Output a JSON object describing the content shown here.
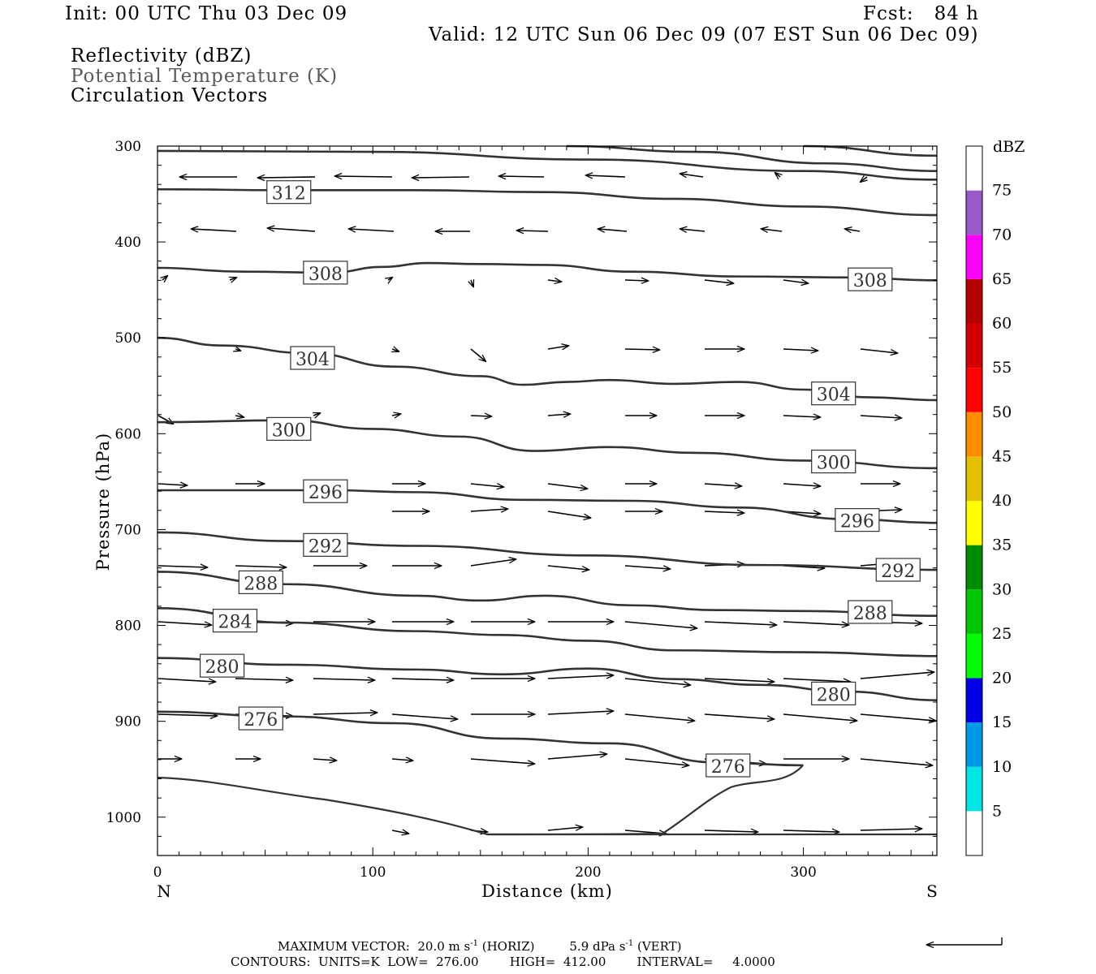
{
  "header": {
    "init": "Init: 00 UTC Thu 03 Dec 09",
    "fcst": "Fcst:   84 h",
    "valid": "Valid: 12 UTC Sun 06 Dec 09 (07 EST Sun 06 Dec 09)",
    "field1": "Reflectivity (dBZ)",
    "field2": "Potential Temperature (K)",
    "field3": "Circulation Vectors"
  },
  "chart_data": {
    "type": "cross-section",
    "xlabel": "Distance (km)",
    "ylabel": "Pressure (hPa)",
    "xlim": [
      0,
      362
    ],
    "ylim_pressure": [
      300,
      1040
    ],
    "x_ticks": [
      0,
      100,
      200,
      300
    ],
    "y_ticks": [
      300,
      400,
      500,
      600,
      700,
      800,
      900,
      1000
    ],
    "x_end_labels": {
      "left": "N",
      "right": "S"
    },
    "colorbar": {
      "title": "dBZ",
      "levels": [
        "5",
        "10",
        "15",
        "20",
        "25",
        "30",
        "35",
        "40",
        "45",
        "50",
        "55",
        "60",
        "65",
        "70",
        "75"
      ],
      "colors": [
        "#00e5e5",
        "#0099e6",
        "#0000e6",
        "#00ff00",
        "#00c800",
        "#008c00",
        "#ffff00",
        "#e6c000",
        "#ff8c00",
        "#ff0000",
        "#d20000",
        "#b40000",
        "#ff00ff",
        "#9b59c8",
        "#ffffff"
      ]
    },
    "contours": [
      {
        "value": 312,
        "label_at": [
          [
            61,
            348
          ]
        ],
        "points": [
          [
            0,
            345
          ],
          [
            60,
            346
          ],
          [
            120,
            346
          ],
          [
            180,
            348
          ],
          [
            240,
            355
          ],
          [
            300,
            363
          ],
          [
            362,
            372
          ]
        ]
      },
      {
        "value": 316,
        "label_at": [],
        "points": [
          [
            0,
            305
          ],
          [
            100,
            306
          ],
          [
            200,
            314
          ],
          [
            300,
            326
          ],
          [
            362,
            335
          ]
        ]
      },
      {
        "value": 320,
        "label_at": [],
        "points": [
          [
            190,
            300
          ],
          [
            250,
            306
          ],
          [
            310,
            318
          ],
          [
            362,
            326
          ]
        ]
      },
      {
        "value": 324,
        "label_at": [],
        "points": [
          [
            300,
            300
          ],
          [
            362,
            310
          ]
        ]
      },
      {
        "value": 308,
        "label_at": [
          [
            78,
            432
          ],
          [
            331,
            439
          ]
        ],
        "points": [
          [
            0,
            427
          ],
          [
            40,
            431
          ],
          [
            80,
            432
          ],
          [
            105,
            426
          ],
          [
            125,
            422
          ],
          [
            150,
            423
          ],
          [
            180,
            424
          ],
          [
            220,
            431
          ],
          [
            270,
            436
          ],
          [
            320,
            437
          ],
          [
            362,
            440
          ]
        ]
      },
      {
        "value": 304,
        "label_at": [
          [
            72,
            521
          ],
          [
            314,
            558
          ]
        ],
        "points": [
          [
            0,
            500
          ],
          [
            30,
            508
          ],
          [
            70,
            516
          ],
          [
            110,
            530
          ],
          [
            150,
            540
          ],
          [
            170,
            549
          ],
          [
            190,
            546
          ],
          [
            210,
            544
          ],
          [
            240,
            548
          ],
          [
            270,
            546
          ],
          [
            300,
            554
          ],
          [
            330,
            562
          ],
          [
            362,
            565
          ]
        ]
      },
      {
        "value": 300,
        "label_at": [
          [
            61,
            595
          ],
          [
            314,
            629
          ]
        ],
        "points": [
          [
            0,
            588
          ],
          [
            60,
            586
          ],
          [
            100,
            595
          ],
          [
            140,
            603
          ],
          [
            175,
            618
          ],
          [
            210,
            614
          ],
          [
            250,
            620
          ],
          [
            300,
            628
          ],
          [
            362,
            636
          ]
        ]
      },
      {
        "value": 296,
        "label_at": [
          [
            78,
            660
          ],
          [
            325,
            690
          ]
        ],
        "points": [
          [
            0,
            659
          ],
          [
            80,
            659
          ],
          [
            120,
            661
          ],
          [
            170,
            669
          ],
          [
            220,
            670
          ],
          [
            270,
            677
          ],
          [
            320,
            689
          ],
          [
            362,
            693
          ]
        ]
      },
      {
        "value": 292,
        "label_at": [
          [
            78,
            716
          ],
          [
            344,
            742
          ]
        ],
        "points": [
          [
            0,
            703
          ],
          [
            60,
            712
          ],
          [
            120,
            717
          ],
          [
            200,
            727
          ],
          [
            280,
            737
          ],
          [
            362,
            742
          ]
        ]
      },
      {
        "value": 288,
        "label_at": [
          [
            48,
            755
          ],
          [
            331,
            786
          ]
        ],
        "points": [
          [
            0,
            744
          ],
          [
            60,
            757
          ],
          [
            120,
            769
          ],
          [
            150,
            774
          ],
          [
            180,
            769
          ],
          [
            220,
            779
          ],
          [
            260,
            784
          ],
          [
            300,
            785
          ],
          [
            362,
            790
          ]
        ]
      },
      {
        "value": 284,
        "label_at": [
          [
            36,
            795
          ]
        ],
        "points": [
          [
            0,
            782
          ],
          [
            60,
            797
          ],
          [
            120,
            806
          ],
          [
            160,
            810
          ],
          [
            200,
            816
          ],
          [
            240,
            826
          ],
          [
            300,
            828
          ],
          [
            362,
            832
          ]
        ]
      },
      {
        "value": 280,
        "label_at": [
          [
            30,
            842
          ],
          [
            314,
            871
          ]
        ],
        "points": [
          [
            0,
            834
          ],
          [
            60,
            841
          ],
          [
            120,
            846
          ],
          [
            160,
            851
          ],
          [
            200,
            845
          ],
          [
            240,
            856
          ],
          [
            280,
            862
          ],
          [
            320,
            869
          ],
          [
            362,
            878
          ]
        ]
      },
      {
        "value": 276,
        "label_at": [
          [
            48,
            897
          ],
          [
            265,
            946
          ]
        ],
        "points": [
          [
            0,
            890
          ],
          [
            60,
            895
          ],
          [
            110,
            902
          ],
          [
            160,
            918
          ],
          [
            210,
            923
          ],
          [
            260,
            943
          ],
          [
            300,
            946
          ]
        ]
      }
    ]
  },
  "footer": {
    "line1": "MAXIMUM VECTOR:  20.0 m s",
    "line1_sup": "-1",
    "line1_b": " (HORIZ)         5.9 dPa s",
    "line1_sup2": "-1",
    "line1_c": " (VERT)",
    "line2": "CONTOURS:  UNITS=K  LOW=  276.00        HIGH=  412.00        INTERVAL=     4.0000"
  }
}
